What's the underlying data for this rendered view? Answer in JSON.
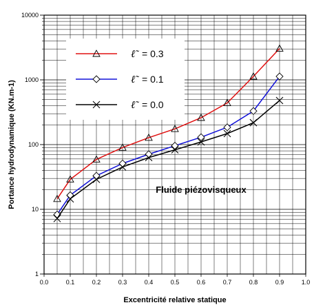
{
  "chart_data": {
    "type": "line",
    "xlabel": "Excentricité relative statique",
    "ylabel": "Portance hydrodynamique (KN.m-1)",
    "y_scale": "log",
    "xlim": [
      0.0,
      1.0
    ],
    "ylim": [
      1,
      10000
    ],
    "grid": true,
    "x_ticks": [
      "0.0",
      "0.1",
      "0.2",
      "0.3",
      "0.4",
      "0.5",
      "0.6",
      "0.7",
      "0.8",
      "0.9",
      "1.0"
    ],
    "y_ticks": [
      "1",
      "10",
      "100",
      "1000",
      "10000"
    ],
    "annotation": "Fluide piézovisqueux",
    "legend_position": "top-left",
    "x": [
      0.05,
      0.1,
      0.2,
      0.3,
      0.4,
      0.5,
      0.6,
      0.7,
      0.8,
      0.9
    ],
    "series": [
      {
        "name": "ℓ̃ = 0.3",
        "symbol": "ℓ̃",
        "value_text": "= 0.3",
        "color": "#e01010",
        "marker": "triangle",
        "values": [
          14.5,
          29,
          59,
          90,
          128,
          175,
          260,
          440,
          1130,
          3050
        ]
      },
      {
        "name": "ℓ̃ = 0.1",
        "symbol": "ℓ̃",
        "value_text": "= 0.1",
        "color": "#1010d8",
        "marker": "diamond",
        "values": [
          8.3,
          16.5,
          33,
          51,
          71,
          96,
          130,
          185,
          330,
          1130
        ]
      },
      {
        "name": "ℓ̃ = 0.0",
        "symbol": "ℓ̃",
        "value_text": "= 0.0",
        "color": "#000000",
        "marker": "x",
        "values": [
          7.2,
          14.5,
          29,
          45,
          63,
          83,
          110,
          148,
          218,
          480
        ]
      }
    ]
  }
}
